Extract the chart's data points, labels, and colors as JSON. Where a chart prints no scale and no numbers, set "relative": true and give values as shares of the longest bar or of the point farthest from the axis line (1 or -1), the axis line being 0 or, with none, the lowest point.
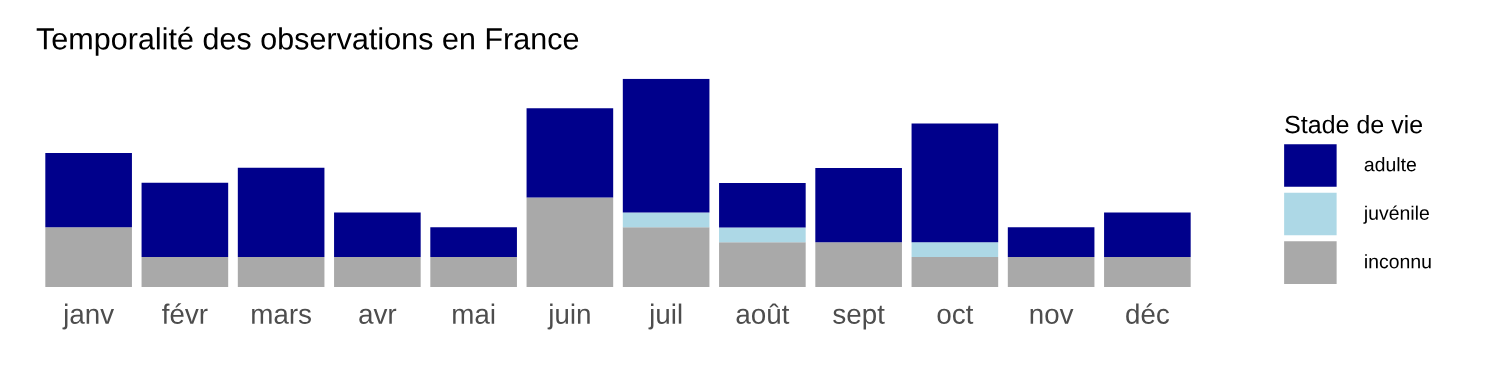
{
  "chart_data": {
    "type": "bar",
    "title": "Temporalité des observations en France",
    "stacked": true,
    "relative": true,
    "legend": "right",
    "legend_title": "Stade de vie",
    "grid": false,
    "categories": [
      "janv",
      "févr",
      "mars",
      "avr",
      "mai",
      "juin",
      "juil",
      "août",
      "sept",
      "oct",
      "nov",
      "déc"
    ],
    "series": [
      {
        "name": "inconnu",
        "color": "#a9a9a9",
        "values": [
          0.286,
          0.143,
          0.143,
          0.143,
          0.143,
          0.429,
          0.286,
          0.214,
          0.214,
          0.143,
          0.143,
          0.143
        ]
      },
      {
        "name": "juvénile",
        "color": "#add8e6",
        "values": [
          0,
          0,
          0,
          0,
          0,
          0,
          0.071,
          0.071,
          0,
          0.071,
          0,
          0
        ]
      },
      {
        "name": "adulte",
        "color": "#00008b",
        "values": [
          0.357,
          0.357,
          0.429,
          0.214,
          0.143,
          0.429,
          0.643,
          0.214,
          0.357,
          0.571,
          0.143,
          0.214
        ]
      }
    ]
  }
}
